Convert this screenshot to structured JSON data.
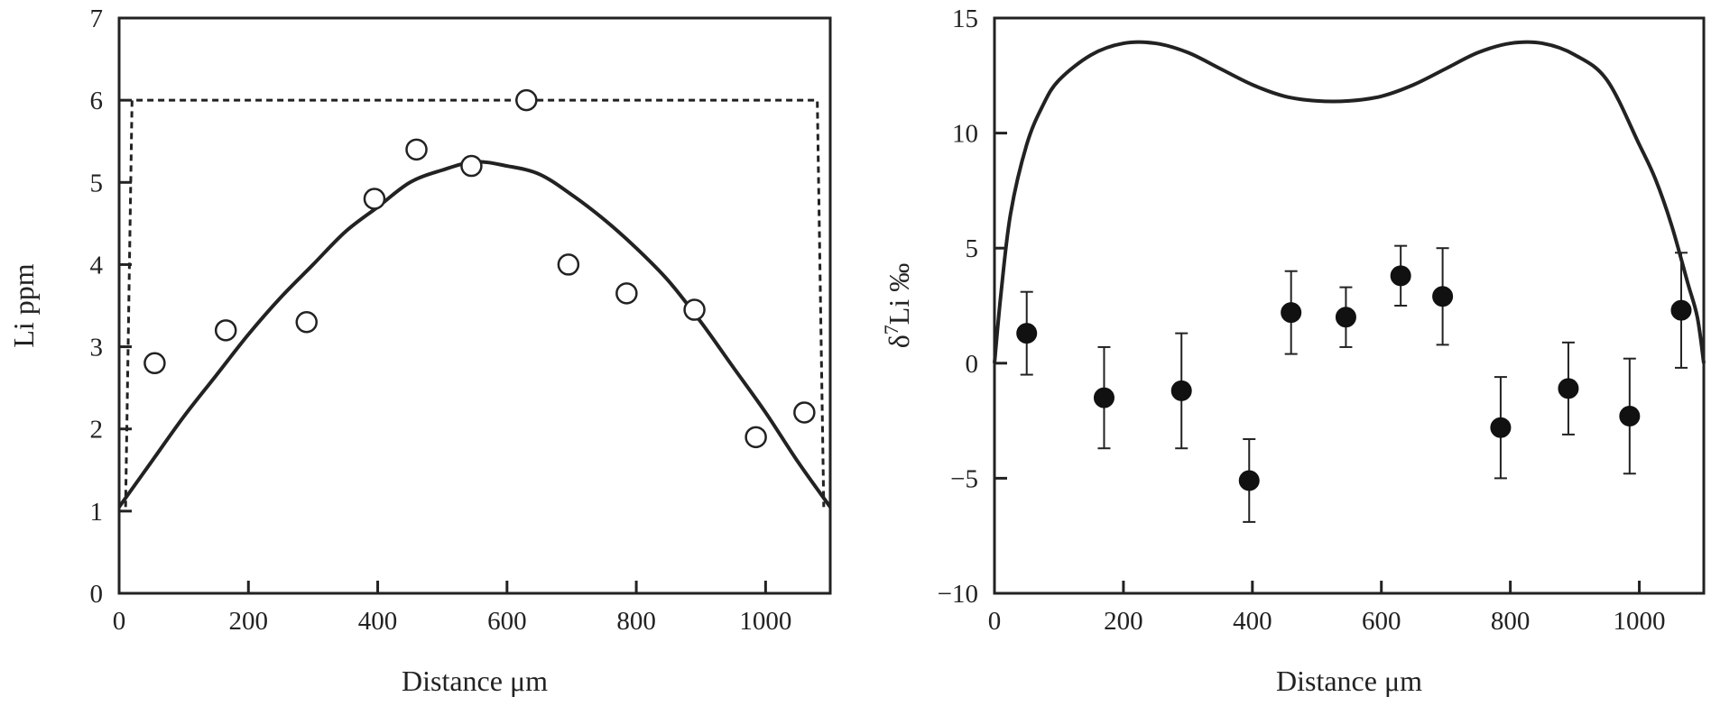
{
  "chart_data": [
    {
      "type": "scatter",
      "xlabel": "Distance μm",
      "ylabel": "Li ppm",
      "xlim": [
        0,
        1100
      ],
      "ylim": [
        0,
        7
      ],
      "xticks": [
        0,
        200,
        400,
        600,
        800,
        1000
      ],
      "yticks": [
        0,
        1,
        2,
        3,
        4,
        5,
        6,
        7
      ],
      "grid": false,
      "points": {
        "marker": "open-circle",
        "x": [
          55,
          165,
          290,
          395,
          460,
          545,
          630,
          695,
          785,
          890,
          985,
          1060
        ],
        "y": [
          2.8,
          3.2,
          3.3,
          4.8,
          5.4,
          5.2,
          6.0,
          4.0,
          3.65,
          3.45,
          1.9,
          2.2
        ]
      },
      "model_curve": {
        "style": "solid",
        "x": [
          0,
          50,
          100,
          150,
          200,
          250,
          300,
          350,
          400,
          450,
          500,
          550,
          600,
          650,
          700,
          750,
          800,
          850,
          900,
          950,
          1000,
          1050,
          1100
        ],
        "y": [
          1.05,
          1.6,
          2.15,
          2.65,
          3.15,
          3.6,
          4.0,
          4.4,
          4.7,
          5.0,
          5.15,
          5.25,
          5.2,
          5.1,
          4.85,
          4.55,
          4.2,
          3.8,
          3.3,
          2.75,
          2.2,
          1.6,
          1.05
        ]
      },
      "initial_profile": {
        "style": "dashed",
        "x": [
          10,
          20,
          1080,
          1090
        ],
        "y": [
          1.05,
          6.0,
          6.0,
          1.05
        ]
      }
    },
    {
      "type": "scatter",
      "xlabel": "Distance μm",
      "ylabel_base": "δ",
      "ylabel_sup": "7",
      "ylabel_rest": "Li ‰",
      "xlim": [
        0,
        1100
      ],
      "ylim": [
        -10,
        15
      ],
      "xticks": [
        0,
        200,
        400,
        600,
        800,
        1000
      ],
      "yticks": [
        -10,
        -5,
        0,
        5,
        10,
        15
      ],
      "ytick_labels": [
        "−10",
        "−5",
        "0",
        "5",
        "10",
        "15"
      ],
      "grid": false,
      "points": {
        "marker": "filled-circle",
        "x": [
          50,
          170,
          290,
          395,
          460,
          545,
          630,
          695,
          785,
          890,
          985,
          1065
        ],
        "y": [
          1.3,
          -1.5,
          -1.2,
          -5.1,
          2.2,
          2.0,
          3.8,
          2.9,
          -2.8,
          -1.1,
          -2.3,
          2.3
        ],
        "err": [
          1.8,
          2.2,
          2.5,
          1.8,
          1.8,
          1.3,
          1.3,
          2.1,
          2.2,
          2.0,
          2.5,
          2.5
        ]
      },
      "model_curve": {
        "style": "solid",
        "x": [
          0,
          10,
          25,
          50,
          75,
          100,
          150,
          200,
          250,
          300,
          350,
          400,
          450,
          500,
          550,
          600,
          650,
          700,
          750,
          800,
          850,
          900,
          950,
          1000,
          1025,
          1050,
          1075,
          1090,
          1100
        ],
        "y": [
          0,
          3.0,
          6.5,
          9.5,
          11.2,
          12.3,
          13.4,
          13.9,
          13.9,
          13.5,
          12.8,
          12.1,
          11.6,
          11.4,
          11.4,
          11.6,
          12.1,
          12.8,
          13.5,
          13.9,
          13.9,
          13.4,
          12.3,
          9.5,
          8.0,
          6.0,
          3.5,
          2.0,
          0
        ]
      }
    }
  ]
}
